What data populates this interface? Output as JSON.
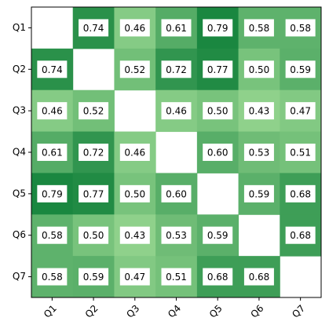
{
  "chart_data": {
    "type": "heatmap",
    "x_categories": [
      "Q1",
      "Q2",
      "Q3",
      "Q4",
      "Q5",
      "Q6",
      "Q7"
    ],
    "y_categories": [
      "Q1",
      "Q2",
      "Q3",
      "Q4",
      "Q5",
      "Q6",
      "Q7"
    ],
    "values": [
      [
        null,
        0.74,
        0.46,
        0.61,
        0.79,
        0.58,
        0.58
      ],
      [
        0.74,
        null,
        0.52,
        0.72,
        0.77,
        0.5,
        0.59
      ],
      [
        0.46,
        0.52,
        null,
        0.46,
        0.5,
        0.43,
        0.47
      ],
      [
        0.61,
        0.72,
        0.46,
        null,
        0.6,
        0.53,
        0.51
      ],
      [
        0.79,
        0.77,
        0.5,
        0.6,
        null,
        0.59,
        0.68
      ],
      [
        0.58,
        0.5,
        0.43,
        0.53,
        0.59,
        null,
        0.68
      ],
      [
        0.58,
        0.59,
        0.47,
        0.51,
        0.68,
        0.68,
        null
      ]
    ],
    "value_labels": [
      [
        null,
        "0.74",
        "0.46",
        "0.61",
        "0.79",
        "0.58",
        "0.58"
      ],
      [
        "0.74",
        null,
        "0.52",
        "0.72",
        "0.77",
        "0.50",
        "0.59"
      ],
      [
        "0.46",
        "0.52",
        null,
        "0.46",
        "0.50",
        "0.43",
        "0.47"
      ],
      [
        "0.61",
        "0.72",
        "0.46",
        null,
        "0.60",
        "0.53",
        "0.51"
      ],
      [
        "0.79",
        "0.77",
        "0.50",
        "0.60",
        null,
        "0.59",
        "0.68"
      ],
      [
        "0.58",
        "0.50",
        "0.43",
        "0.53",
        "0.59",
        null,
        "0.68"
      ],
      [
        "0.58",
        "0.59",
        "0.47",
        "0.51",
        "0.68",
        "0.68",
        null
      ]
    ],
    "color_range": [
      "#8fd18b",
      "#1a8740"
    ]
  }
}
